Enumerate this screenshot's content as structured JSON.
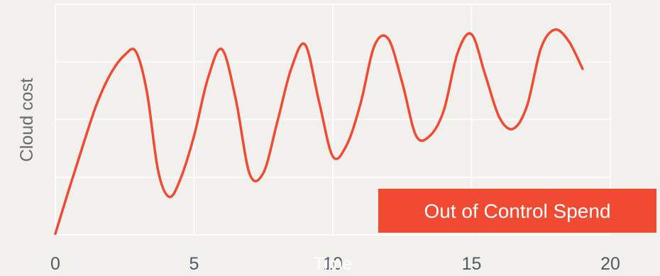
{
  "chart_data": {
    "type": "line",
    "title": "",
    "xlabel": "Time",
    "ylabel": "Cloud cost",
    "xlim": [
      0,
      20
    ],
    "ylim": [
      0,
      10
    ],
    "x_ticks": [
      "0",
      "5",
      "10",
      "15",
      "20"
    ],
    "grid": true,
    "annotation": "Out of Control Spend",
    "series": [
      {
        "color": "#f04a33",
        "x": [
          0,
          0.5,
          1,
          1.5,
          2,
          2.5,
          2.9,
          3.3,
          3.7,
          4.1,
          4.5,
          5,
          5.5,
          6,
          6.5,
          7,
          7.5,
          8,
          8.5,
          9,
          9.5,
          10,
          10.5,
          11,
          11.5,
          12,
          12.5,
          13,
          13.5,
          14,
          14.5,
          15,
          15.5,
          16,
          16.5,
          17,
          17.5,
          18,
          18.5,
          19
        ],
        "y": [
          0.05,
          2.0,
          3.9,
          5.7,
          7.0,
          7.8,
          7.95,
          6.2,
          2.8,
          1.65,
          2.4,
          4.3,
          6.8,
          8.05,
          5.9,
          2.65,
          2.7,
          4.9,
          7.2,
          8.25,
          5.8,
          3.4,
          3.9,
          5.7,
          8.2,
          8.5,
          6.6,
          4.3,
          4.3,
          5.4,
          7.9,
          8.7,
          6.9,
          5.1,
          4.6,
          5.6,
          8.1,
          8.9,
          8.4,
          7.2
        ]
      }
    ]
  }
}
